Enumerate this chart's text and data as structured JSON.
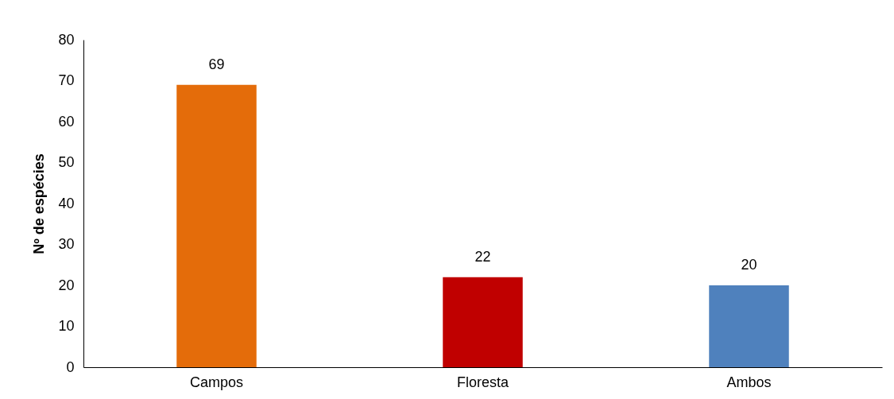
{
  "chart_data": {
    "type": "bar",
    "ylabel": "Nº de espécies",
    "categories": [
      "Campos",
      "Floresta",
      "Ambos"
    ],
    "values": [
      69,
      22,
      20
    ],
    "colors": [
      "#e46c0a",
      "#c00000",
      "#4f81bd"
    ],
    "ylim": [
      0,
      80
    ],
    "yticks": [
      0,
      10,
      20,
      30,
      40,
      50,
      60,
      70,
      80
    ],
    "grid": false,
    "legend": false,
    "data_labels": true
  }
}
